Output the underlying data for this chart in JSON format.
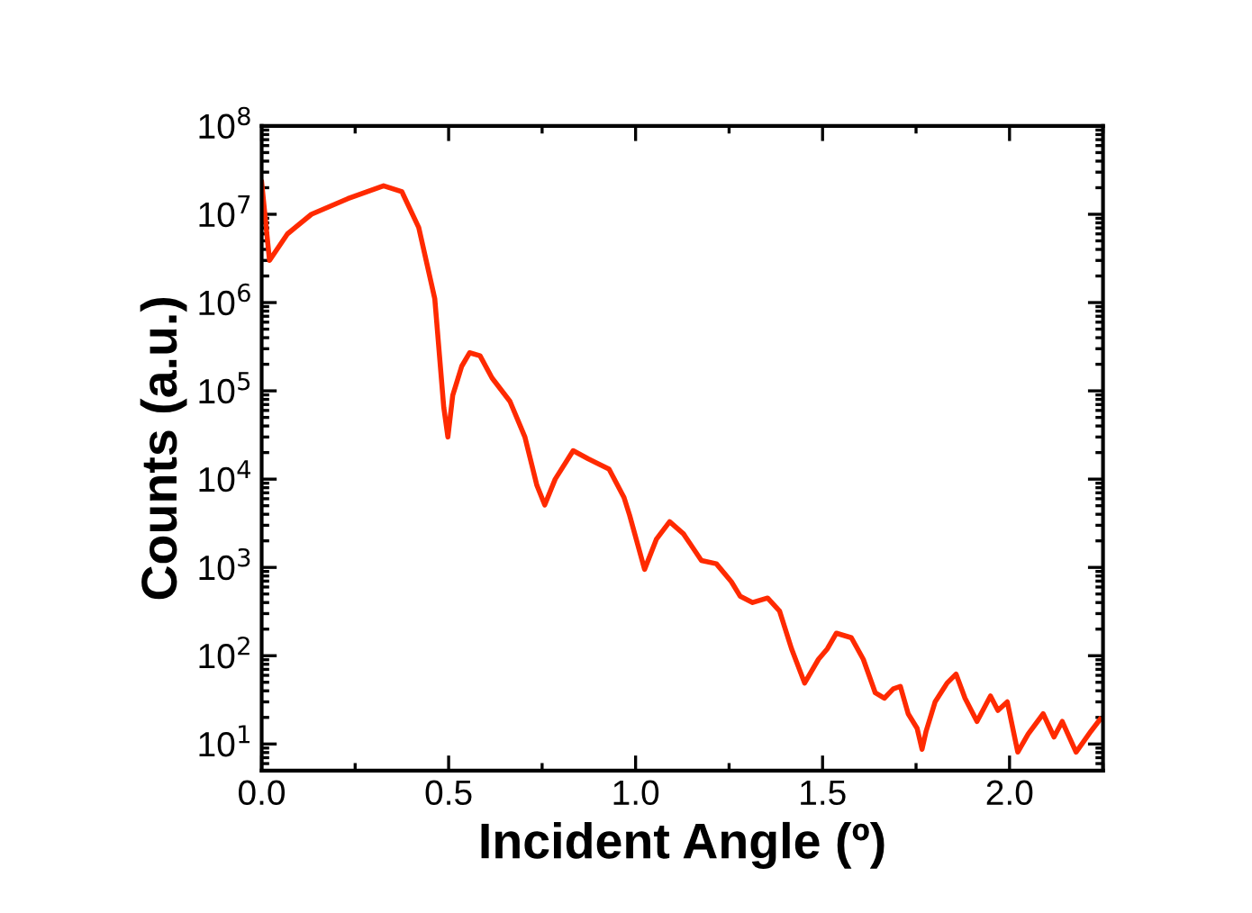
{
  "chart_data": {
    "type": "line",
    "xlabel": "Incident Angle (º)",
    "ylabel": "Counts (a.u.)",
    "log": "y",
    "grid": false,
    "marker": "none",
    "line_style": "solid",
    "xlim": [
      0,
      2.25
    ],
    "xticks": [
      {
        "value": 0,
        "label": "0.0"
      },
      {
        "value": 0.5,
        "label": "0.5"
      },
      {
        "value": 1.0,
        "label": "1.0"
      },
      {
        "value": 1.5,
        "label": "1.5"
      },
      {
        "value": 2.0,
        "label": "2.0"
      }
    ],
    "ylim": [
      5,
      100000000
    ],
    "yticks": [
      {
        "value": 10,
        "label": "10$^{1}$"
      },
      {
        "value": 100,
        "label": "10$^{2}$"
      },
      {
        "value": 1000,
        "label": "10$^{3}$"
      },
      {
        "value": 10000,
        "label": "10$^{4}$"
      },
      {
        "value": 100000,
        "label": "10$^{5}$"
      },
      {
        "value": 1000000,
        "label": "10$^{6}$"
      },
      {
        "value": 10000000,
        "label": "10$^{7}$"
      },
      {
        "value": 100000000,
        "label": "10$^{8}$"
      }
    ],
    "series": [
      {
        "color": "#ff2a00",
        "x": [
          0,
          0.021,
          0.069,
          0.133,
          0.23,
          0.326,
          0.375,
          0.42,
          0.463,
          0.487,
          0.498,
          0.511,
          0.535,
          0.556,
          0.584,
          0.616,
          0.664,
          0.704,
          0.736,
          0.757,
          0.785,
          0.833,
          0.873,
          0.929,
          0.969,
          0.984,
          1.024,
          1.056,
          1.091,
          1.128,
          1.176,
          1.216,
          1.256,
          1.28,
          1.313,
          1.353,
          1.385,
          1.417,
          1.452,
          1.489,
          1.513,
          1.537,
          1.577,
          1.609,
          1.641,
          1.665,
          1.689,
          1.708,
          1.729,
          1.753,
          1.766,
          1.777,
          1.801,
          1.833,
          1.857,
          1.881,
          1.913,
          1.949,
          1.969,
          1.994,
          2.022,
          2.05,
          2.09,
          2.119,
          2.141,
          2.178,
          2.218,
          2.242
        ],
        "values": [
          23000000,
          3000000,
          6000000,
          10000000,
          15000000,
          21000000,
          18000000,
          7100000,
          1100000,
          65000,
          30000,
          89000,
          190000,
          270000,
          250000,
          140000,
          76000,
          30000,
          8500,
          5100,
          10000,
          21000,
          17000,
          13000,
          6200,
          3900,
          950,
          2100,
          3300,
          2400,
          1200,
          1100,
          690,
          470,
          400,
          450,
          320,
          120,
          49,
          91,
          120,
          180,
          160,
          91,
          38,
          33,
          42,
          45,
          22,
          15,
          8.7,
          14,
          30,
          49,
          62,
          33,
          18,
          35,
          24,
          30,
          8.1,
          13,
          22,
          12,
          18,
          8.1,
          14,
          19
        ]
      }
    ]
  }
}
